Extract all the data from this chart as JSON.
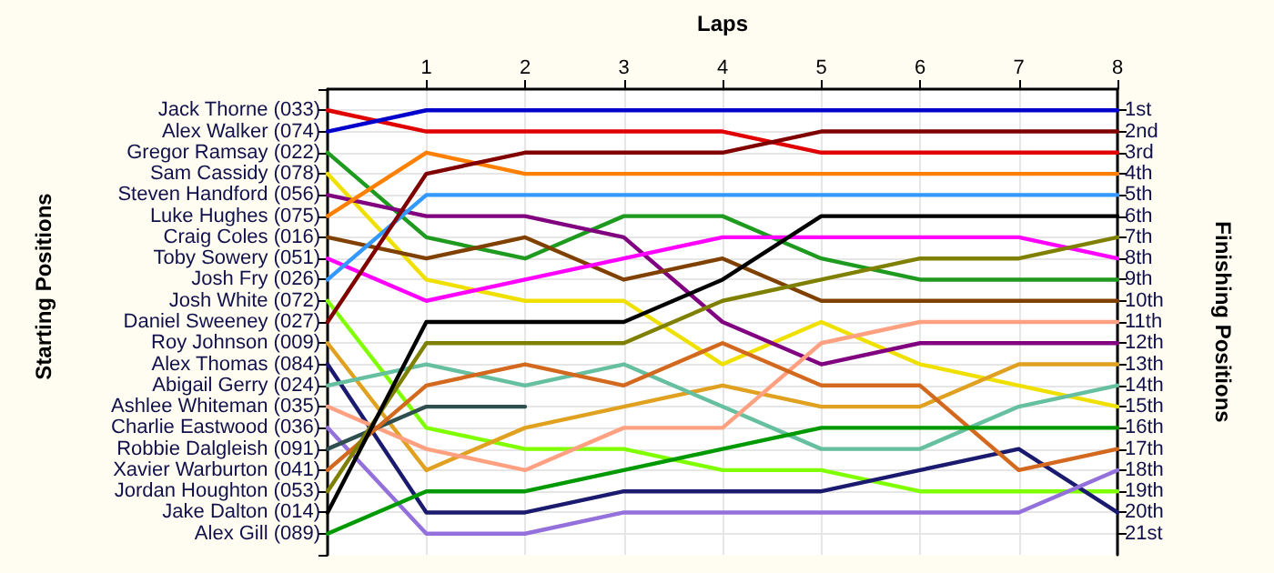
{
  "chart_data": {
    "type": "line",
    "xlabel": "Laps",
    "annotations": [
      "Starting Positions"
    ],
    "y2label": "Finishing Positions",
    "x": [
      0,
      1,
      2,
      3,
      4,
      5,
      6,
      7,
      8
    ],
    "series": [
      {
        "axis": "y2",
        "color": "#e00000",
        "values": [
          1,
          2,
          2,
          2,
          2,
          3,
          3,
          3,
          3
        ]
      },
      {
        "axis": "y2",
        "color": "#0000cc",
        "values": [
          2,
          1,
          1,
          1,
          1,
          1,
          1,
          1,
          1
        ]
      },
      {
        "axis": "y2",
        "color": "#1e9a1e",
        "values": [
          3,
          7,
          8,
          6,
          6,
          8,
          9,
          9,
          9
        ]
      },
      {
        "axis": "y2",
        "color": "#f0e000",
        "values": [
          4,
          9,
          10,
          10,
          13,
          11,
          13,
          14,
          15
        ]
      },
      {
        "axis": "y2",
        "color": "#800080",
        "values": [
          5,
          6,
          6,
          7,
          11,
          13,
          12,
          12,
          12
        ]
      },
      {
        "axis": "y2",
        "color": "#ff8000",
        "values": [
          6,
          3,
          4,
          4,
          4,
          4,
          4,
          4,
          4
        ]
      },
      {
        "axis": "y2",
        "color": "#804000",
        "values": [
          7,
          8,
          7,
          9,
          8,
          10,
          10,
          10,
          10
        ]
      },
      {
        "axis": "y2",
        "color": "#ff00ff",
        "values": [
          8,
          10,
          9,
          8,
          7,
          7,
          7,
          7,
          8
        ]
      },
      {
        "axis": "y2",
        "color": "#3399ff",
        "values": [
          9,
          5,
          5,
          5,
          5,
          5,
          5,
          5,
          5
        ]
      },
      {
        "axis": "y2",
        "color": "#80ff00",
        "values": [
          10,
          16,
          17,
          17,
          18,
          18,
          19,
          19,
          19
        ]
      },
      {
        "axis": "y2",
        "color": "#800000",
        "values": [
          11,
          4,
          3,
          3,
          3,
          2,
          2,
          2,
          2
        ]
      },
      {
        "axis": "y2",
        "color": "#e0a020",
        "values": [
          12,
          18,
          16,
          15,
          14,
          15,
          15,
          13,
          13
        ]
      },
      {
        "axis": "y2",
        "color": "#1a1a6e",
        "values": [
          13,
          20,
          20,
          19,
          19,
          19,
          18,
          17,
          20
        ]
      },
      {
        "axis": "y2",
        "color": "#66c0a0",
        "values": [
          14,
          13,
          14,
          13,
          15,
          17,
          17,
          15,
          14
        ]
      },
      {
        "axis": "y2",
        "color": "#ffa080",
        "values": [
          15,
          17,
          18,
          16,
          16,
          12,
          11,
          11,
          11
        ]
      },
      {
        "axis": "y2",
        "color": "#9370db",
        "values": [
          16,
          21,
          21,
          20,
          20,
          20,
          20,
          20,
          18
        ]
      },
      {
        "axis": "y2",
        "color": "#2f4f4f",
        "values": [
          17,
          15,
          15,
          null,
          null,
          null,
          null,
          null,
          null
        ]
      },
      {
        "axis": "y2",
        "color": "#d2691e",
        "values": [
          18,
          14,
          13,
          14,
          12,
          14,
          14,
          18,
          17
        ]
      },
      {
        "axis": "y2",
        "color": "#808000",
        "values": [
          19,
          12,
          12,
          12,
          10,
          9,
          8,
          8,
          7
        ]
      },
      {
        "axis": "y2",
        "color": "#000000",
        "values": [
          20,
          11,
          11,
          11,
          9,
          6,
          6,
          6,
          6
        ]
      },
      {
        "axis": "y2",
        "color": "#009900",
        "values": [
          21,
          19,
          19,
          18,
          17,
          16,
          16,
          16,
          16
        ]
      }
    ],
    "xlim": [
      0,
      8
    ],
    "xticks": [
      1,
      2,
      3,
      4,
      5,
      6,
      7,
      8
    ],
    "y_categories": [
      "Jack Thorne (033)",
      "Alex Walker (074)",
      "Gregor Ramsay (022)",
      "Sam Cassidy (078)",
      "Steven Handford (056)",
      "Luke Hughes (075)",
      "Craig Coles (016)",
      "Toby Sowery (051)",
      "Josh Fry (026)",
      "Josh White (072)",
      "Daniel Sweeney (027)",
      "Roy Johnson (009)",
      "Alex Thomas (084)",
      "Abigail Gerry (024)",
      "Ashlee Whiteman (035)",
      "Charlie Eastwood (036)",
      "Robbie Dalgleish (091)",
      "Xavier Warburton (041)",
      "Jordan Houghton (053)",
      "Jake Dalton (014)",
      "Alex Gill (089)"
    ],
    "y2lim": [
      22,
      0
    ],
    "y2ticks": [
      {
        "value": 1,
        "label": "1st"
      },
      {
        "value": 2,
        "label": "2nd"
      },
      {
        "value": 3,
        "label": "3rd"
      },
      {
        "value": 4,
        "label": "4th"
      },
      {
        "value": 5,
        "label": "5th"
      },
      {
        "value": 6,
        "label": "6th"
      },
      {
        "value": 7,
        "label": "7th"
      },
      {
        "value": 8,
        "label": "8th"
      },
      {
        "value": 9,
        "label": "9th"
      },
      {
        "value": 10,
        "label": "10th"
      },
      {
        "value": 11,
        "label": "11th"
      },
      {
        "value": 12,
        "label": "12th"
      },
      {
        "value": 13,
        "label": "13th"
      },
      {
        "value": 14,
        "label": "14th"
      },
      {
        "value": 15,
        "label": "15th"
      },
      {
        "value": 16,
        "label": "16th"
      },
      {
        "value": 17,
        "label": "17th"
      },
      {
        "value": 18,
        "label": "18th"
      },
      {
        "value": 19,
        "label": "19th"
      },
      {
        "value": 20,
        "label": "20th"
      },
      {
        "value": 21,
        "label": "21st"
      }
    ],
    "grid": true,
    "marker": "none",
    "line_style": "solid"
  }
}
